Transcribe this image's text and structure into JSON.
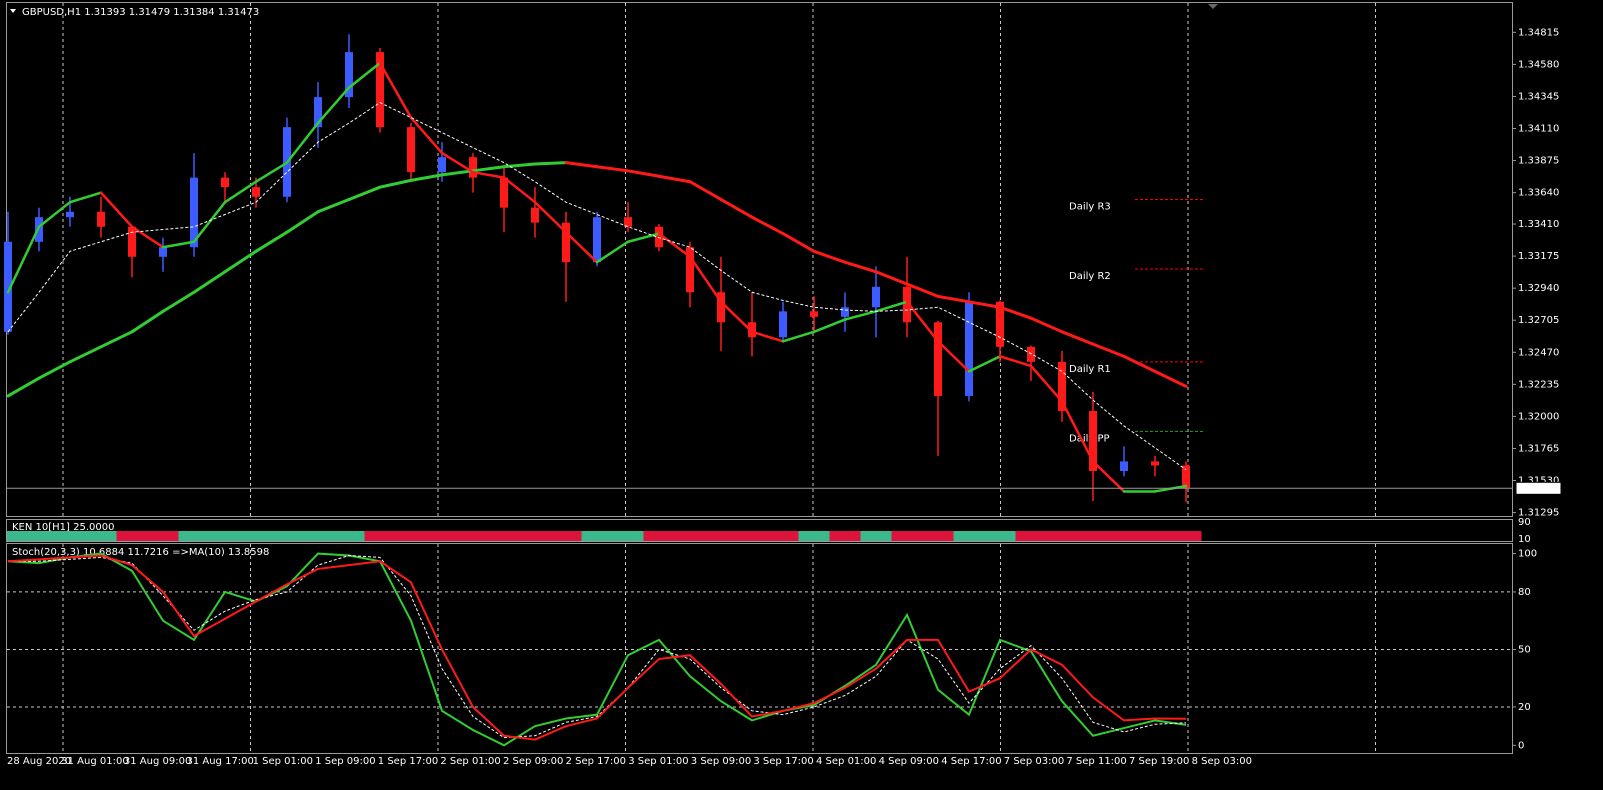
{
  "chart_data": [
    {
      "type": "candlestick",
      "header": "GBPUSD,H1  1.31393 1.31479 1.31384 1.31473",
      "open": [
        1.3262,
        1.3328,
        1.3346,
        1.335,
        1.3339,
        1.3317,
        1.3324,
        1.3375,
        1.3368,
        1.3361,
        1.3412,
        1.3434,
        1.3467,
        1.3412,
        1.3379,
        1.339,
        1.3375,
        1.3353,
        1.3342,
        1.3313,
        1.3346,
        1.3339,
        1.3324,
        1.3291,
        1.3269,
        1.3258,
        1.3277,
        1.3273,
        1.328,
        1.3295,
        1.3269,
        1.3215,
        1.3284,
        1.3251,
        1.324,
        1.3204,
        1.316,
        1.3167,
        1.3164
      ],
      "high": [
        1.335,
        1.3353,
        1.3361,
        1.3361,
        1.3339,
        1.3331,
        1.3393,
        1.3379,
        1.3375,
        1.3419,
        1.3445,
        1.348,
        1.347,
        1.3415,
        1.3401,
        1.3393,
        1.3383,
        1.3368,
        1.335,
        1.335,
        1.3357,
        1.3341,
        1.3328,
        1.3317,
        1.3291,
        1.3284,
        1.3288,
        1.3291,
        1.331,
        1.3317,
        1.327,
        1.3291,
        1.3285,
        1.3252,
        1.3248,
        1.3218,
        1.3178,
        1.3171,
        1.3167
      ],
      "low": [
        1.326,
        1.3321,
        1.3339,
        1.3331,
        1.3302,
        1.3306,
        1.3317,
        1.3357,
        1.3353,
        1.3357,
        1.3397,
        1.3426,
        1.3408,
        1.3372,
        1.3372,
        1.3364,
        1.3335,
        1.3331,
        1.3284,
        1.331,
        1.3335,
        1.3321,
        1.328,
        1.3248,
        1.3244,
        1.3255,
        1.3262,
        1.3262,
        1.3258,
        1.3258,
        1.3171,
        1.3211,
        1.324,
        1.3226,
        1.3196,
        1.3138,
        1.3156,
        1.3156,
        1.3137
      ],
      "close": [
        1.3328,
        1.3346,
        1.335,
        1.3339,
        1.3317,
        1.3324,
        1.3375,
        1.3368,
        1.3361,
        1.3412,
        1.3434,
        1.3467,
        1.3412,
        1.3379,
        1.339,
        1.3375,
        1.3353,
        1.3342,
        1.3313,
        1.3346,
        1.3339,
        1.3324,
        1.3291,
        1.3269,
        1.3258,
        1.3277,
        1.3273,
        1.328,
        1.3295,
        1.3269,
        1.3215,
        1.3284,
        1.3251,
        1.324,
        1.3204,
        1.316,
        1.3167,
        1.3164,
        1.31473
      ],
      "up_color": "#3d5cff",
      "down_color": "#ff1a1a",
      "ylim": [
        1.3127,
        1.3503
      ],
      "yticks": [
        1.34815,
        {
          "value": 1.3458,
          "label": "1.34580"
        },
        1.34345,
        {
          "value": 1.3411,
          "label": "1.34110"
        },
        1.33875,
        {
          "value": 1.3364,
          "label": "1.33640"
        },
        {
          "value": 1.3341,
          "label": "1.33410"
        },
        1.33175,
        {
          "value": 1.3294,
          "label": "1.32940"
        },
        1.32705,
        {
          "value": 1.3247,
          "label": "1.32470"
        },
        1.32235,
        {
          "value": 1.32,
          "label": "1.32000"
        },
        1.31765,
        {
          "value": 1.3153,
          "label": "1.31530"
        },
        1.31295
      ],
      "last_price": 1.31473,
      "lines": [
        {
          "width": 3,
          "up_color": "#32cd32",
          "down_color": "#ff1a1a",
          "values": [
            1.3215,
            1.3228,
            1.324,
            1.3251,
            1.3262,
            1.3277,
            1.3291,
            1.3306,
            1.3321,
            1.3335,
            1.335,
            1.3359,
            1.3368,
            1.3373,
            1.3377,
            1.338,
            1.3383,
            1.3385,
            1.3386,
            1.3383,
            1.338,
            1.3376,
            1.3372,
            1.3359,
            1.3346,
            1.3334,
            1.3321,
            1.3313,
            1.3306,
            1.3297,
            1.3288,
            1.3284,
            1.328,
            1.3272,
            1.3262,
            1.3253,
            1.3244,
            1.3233,
            1.3222
          ]
        },
        {
          "width": 2.5,
          "up_color": "#32cd32",
          "down_color": "#ff1a1a",
          "values": [
            1.3291,
            1.3339,
            1.3357,
            1.3364,
            1.3339,
            1.3324,
            1.3328,
            1.3357,
            1.3372,
            1.3386,
            1.3415,
            1.3441,
            1.3459,
            1.3419,
            1.3393,
            1.3379,
            1.3375,
            1.3357,
            1.3335,
            1.3313,
            1.3328,
            1.3334,
            1.3317,
            1.3284,
            1.3262,
            1.3255,
            1.3262,
            1.3271,
            1.3277,
            1.3284,
            1.3255,
            1.3233,
            1.3244,
            1.3237,
            1.3211,
            1.3167,
            1.3145,
            1.3145,
            1.3149
          ]
        },
        {
          "width": 1,
          "color": "#ffffff",
          "dash": true,
          "values": [
            1.3262,
            1.3291,
            1.3321,
            1.3328,
            1.3335,
            1.3337,
            1.3339,
            1.3348,
            1.3357,
            1.3379,
            1.3401,
            1.3415,
            1.343,
            1.3419,
            1.3408,
            1.3397,
            1.3386,
            1.3372,
            1.3357,
            1.3348,
            1.3339,
            1.3331,
            1.3324,
            1.3307,
            1.3291,
            1.3285,
            1.328,
            1.3278,
            1.3277,
            1.3278,
            1.328,
            1.3269,
            1.3258,
            1.3246,
            1.3233,
            1.3212,
            1.3193,
            1.3177,
            1.3161
          ]
        }
      ],
      "pivots": [
        {
          "label": "Daily R3",
          "value": 1.3359,
          "color": "#ff0000"
        },
        {
          "label": "Daily R2",
          "value": 1.3308,
          "color": "#ff0000"
        },
        {
          "label": "Daily R1",
          "value": 1.324,
          "color": "#ff0000"
        },
        {
          "label": "Daily PP",
          "value": 1.3189,
          "color": "#2e9e2e",
          "label_color": "#8c8c8c"
        }
      ],
      "time_labels": [
        "28 Aug 2020",
        "31 Aug 01:00",
        "31 Aug 09:00",
        "31 Aug 17:00",
        "1 Sep 01:00",
        "1 Sep 09:00",
        "1 Sep 17:00",
        "2 Sep 01:00",
        "2 Sep 09:00",
        "2 Sep 17:00",
        "3 Sep 01:00",
        "3 Sep 09:00",
        "3 Sep 17:00",
        "4 Sep 01:00",
        "4 Sep 09:00",
        "4 Sep 17:00",
        "7 Sep 03:00",
        "7 Sep 11:00",
        "7 Sep 19:00",
        "8 Sep 03:00"
      ]
    },
    {
      "type": "color-bar",
      "title": "KEN 10[H1] 25.0000",
      "ylim": [
        0,
        100
      ],
      "yticks": [
        90,
        10
      ],
      "colors": [
        "#3cb98c",
        "#3cb98c",
        "#3cb98c",
        "#3cb98c",
        "#dc143c",
        "#dc143c",
        "#3cb98c",
        "#3cb98c",
        "#3cb98c",
        "#3cb98c",
        "#3cb98c",
        "#3cb98c",
        "#dc143c",
        "#dc143c",
        "#dc143c",
        "#dc143c",
        "#dc143c",
        "#dc143c",
        "#dc143c",
        "#3cb98c",
        "#3cb98c",
        "#dc143c",
        "#dc143c",
        "#dc143c",
        "#dc143c",
        "#dc143c",
        "#3cb98c",
        "#dc143c",
        "#3cb98c",
        "#dc143c",
        "#dc143c",
        "#3cb98c",
        "#3cb98c",
        "#dc143c",
        "#dc143c",
        "#dc143c",
        "#dc143c",
        "#dc143c",
        "#dc143c"
      ]
    },
    {
      "type": "line",
      "title": "Stoch(20,3,3) 10.6884 11.7216 =>MA(10) 13.8598",
      "ylim": [
        -4,
        105
      ],
      "yticks": [
        100,
        80,
        50,
        20,
        0
      ],
      "grid": true,
      "series": [
        {
          "color": "#32cd32",
          "values": [
            96,
            95,
            98,
            100,
            91,
            65,
            55,
            80,
            75,
            83,
            100,
            99,
            96,
            65,
            18,
            8,
            0,
            10,
            14,
            16,
            47,
            55,
            36,
            23,
            13,
            18,
            21,
            31,
            42,
            68,
            29,
            16,
            55,
            49,
            23,
            5,
            9,
            13,
            10.6884
          ]
        },
        {
          "color": "#ffffff",
          "dash": true,
          "values": [
            96,
            96,
            97,
            98,
            95,
            78,
            60,
            70,
            76,
            80,
            94,
            99,
            98,
            78,
            40,
            15,
            4,
            5,
            12,
            15,
            30,
            50,
            45,
            30,
            18,
            16,
            20,
            26,
            36,
            55,
            45,
            22,
            40,
            52,
            35,
            12,
            7,
            11,
            11.7216
          ]
        },
        {
          "color": "#ff1a1a",
          "values": [
            96,
            97,
            98,
            99,
            94,
            80,
            57,
            66,
            75,
            84,
            92,
            94,
            96,
            85,
            50,
            20,
            5,
            3,
            10,
            14,
            30,
            45,
            47,
            32,
            15,
            18,
            22,
            30,
            40,
            55,
            55,
            28,
            35,
            50,
            42,
            25,
            13,
            14,
            13.8598
          ]
        }
      ]
    }
  ]
}
